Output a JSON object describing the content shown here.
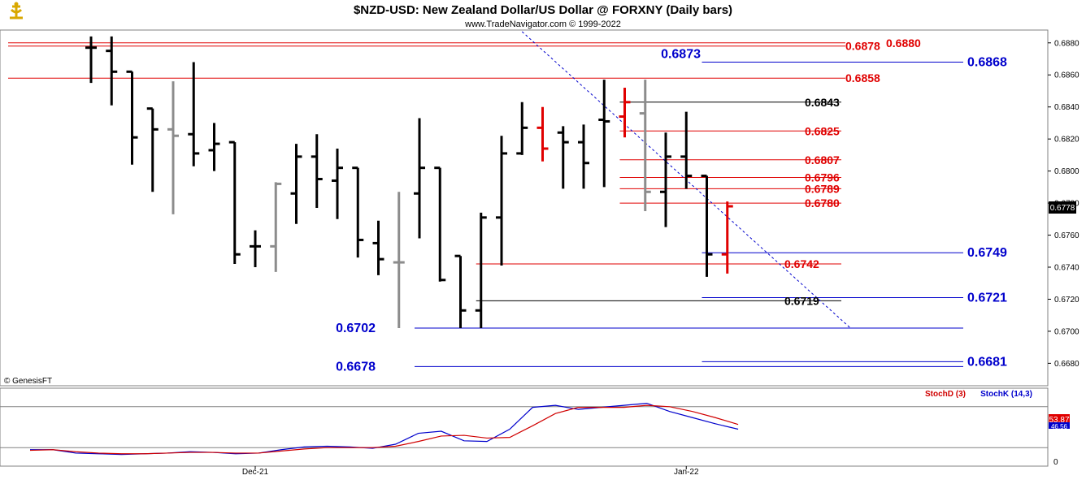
{
  "header": {
    "title": "$NZD-USD:  New Zealand Dollar/US Dollar @ FORXNY  (Daily bars)",
    "subtitle": "www.TradeNavigator.com © 1999-2022",
    "logo_icon": "trade-navigator-logo-icon"
  },
  "watermark": "© GenesisFT",
  "colors": {
    "up_down_bar": "#000000",
    "gray_bar": "#8c8c8c",
    "red_bar": "#e00000",
    "red_level": "#e00000",
    "blue_level": "#0000cc",
    "black_level": "#000000",
    "stoch_k": "#0000cc",
    "stoch_d": "#d00000"
  },
  "chart_data": [
    {
      "type": "ohlc",
      "title": "$NZD-USD:  New Zealand Dollar/US Dollar @ FORXNY  (Daily bars)",
      "ylim": [
        0.6666,
        0.6888
      ],
      "yticks": [
        "0.6680",
        "0.6700",
        "0.6720",
        "0.6740",
        "0.6760",
        "0.6780",
        "0.6800",
        "0.6820",
        "0.6840",
        "0.6860",
        "0.6880"
      ],
      "x_tick_labels": [
        {
          "label": "Dec-21",
          "bar_index": 8
        },
        {
          "label": "Jan-22",
          "bar_index": 29
        }
      ],
      "last_price_label": "0.6778",
      "bars": [
        {
          "o": 0.6877,
          "h": 0.6884,
          "l": 0.6855,
          "c": 0.6877,
          "color": "black"
        },
        {
          "o": 0.6875,
          "h": 0.6884,
          "l": 0.6841,
          "c": 0.6862,
          "color": "black"
        },
        {
          "o": 0.6862,
          "h": 0.6862,
          "l": 0.6804,
          "c": 0.6821,
          "color": "black"
        },
        {
          "o": 0.6839,
          "h": 0.6839,
          "l": 0.6787,
          "c": 0.6826,
          "color": "black"
        },
        {
          "o": 0.6826,
          "h": 0.6856,
          "l": 0.6773,
          "c": 0.6822,
          "color": "gray"
        },
        {
          "o": 0.6823,
          "h": 0.6868,
          "l": 0.6803,
          "c": 0.6811,
          "color": "black"
        },
        {
          "o": 0.6813,
          "h": 0.683,
          "l": 0.68,
          "c": 0.6817,
          "color": "black"
        },
        {
          "o": 0.6818,
          "h": 0.6818,
          "l": 0.6742,
          "c": 0.6748,
          "color": "black"
        },
        {
          "o": 0.6753,
          "h": 0.6763,
          "l": 0.674,
          "c": 0.6753,
          "color": "black"
        },
        {
          "o": 0.6753,
          "h": 0.6793,
          "l": 0.6737,
          "c": 0.6792,
          "color": "gray"
        },
        {
          "o": 0.6786,
          "h": 0.6817,
          "l": 0.6767,
          "c": 0.6809,
          "color": "black"
        },
        {
          "o": 0.6809,
          "h": 0.6823,
          "l": 0.6777,
          "c": 0.6795,
          "color": "black"
        },
        {
          "o": 0.6794,
          "h": 0.6814,
          "l": 0.677,
          "c": 0.6802,
          "color": "black"
        },
        {
          "o": 0.6802,
          "h": 0.6802,
          "l": 0.6746,
          "c": 0.6757,
          "color": "black"
        },
        {
          "o": 0.6755,
          "h": 0.6769,
          "l": 0.6735,
          "c": 0.6745,
          "color": "black"
        },
        {
          "o": 0.6743,
          "h": 0.6787,
          "l": 0.6702,
          "c": 0.6743,
          "color": "gray"
        },
        {
          "o": 0.6786,
          "h": 0.6833,
          "l": 0.6758,
          "c": 0.6802,
          "color": "black"
        },
        {
          "o": 0.6802,
          "h": 0.6802,
          "l": 0.6731,
          "c": 0.6732,
          "color": "black"
        },
        {
          "o": 0.6747,
          "h": 0.6747,
          "l": 0.6702,
          "c": 0.6713,
          "color": "black"
        },
        {
          "o": 0.6713,
          "h": 0.6774,
          "l": 0.6702,
          "c": 0.6771,
          "color": "black"
        },
        {
          "o": 0.6771,
          "h": 0.6822,
          "l": 0.6741,
          "c": 0.6811,
          "color": "black"
        },
        {
          "o": 0.6811,
          "h": 0.6843,
          "l": 0.681,
          "c": 0.6827,
          "color": "black"
        },
        {
          "o": 0.6827,
          "h": 0.684,
          "l": 0.6806,
          "c": 0.6814,
          "color": "red"
        },
        {
          "o": 0.6824,
          "h": 0.6828,
          "l": 0.6789,
          "c": 0.6818,
          "color": "black"
        },
        {
          "o": 0.6818,
          "h": 0.6829,
          "l": 0.6789,
          "c": 0.6805,
          "color": "black"
        },
        {
          "o": 0.6832,
          "h": 0.6857,
          "l": 0.679,
          "c": 0.6831,
          "color": "black"
        },
        {
          "o": 0.6834,
          "h": 0.6852,
          "l": 0.6821,
          "c": 0.6843,
          "color": "red"
        },
        {
          "o": 0.6836,
          "h": 0.6857,
          "l": 0.6775,
          "c": 0.6787,
          "color": "gray"
        },
        {
          "o": 0.6787,
          "h": 0.6824,
          "l": 0.6765,
          "c": 0.6809,
          "color": "black"
        },
        {
          "o": 0.6809,
          "h": 0.6837,
          "l": 0.6789,
          "c": 0.6797,
          "color": "black"
        },
        {
          "o": 0.6797,
          "h": 0.6797,
          "l": 0.6734,
          "c": 0.6748,
          "color": "black"
        },
        {
          "o": 0.6748,
          "h": 0.6781,
          "l": 0.6736,
          "c": 0.6778,
          "color": "red"
        }
      ],
      "levels": [
        {
          "value": 0.688,
          "label": "0.6880",
          "color": "red",
          "label_side": "right",
          "x_from": 0,
          "x_to": "end"
        },
        {
          "value": 0.6878,
          "label": "0.6878",
          "color": "red",
          "label_side": "right",
          "x_from": 0,
          "x_to": "end"
        },
        {
          "value": 0.6873,
          "label": "0.6873",
          "color": "blue",
          "label_side": "left",
          "x_from": null,
          "x_to": null
        },
        {
          "value": 0.6868,
          "label": "0.6868",
          "color": "blue",
          "label_side": "far-right",
          "x_from": 30,
          "x_to": "far"
        },
        {
          "value": 0.6858,
          "label": "0.6858",
          "color": "red",
          "label_side": "right",
          "x_from": 0,
          "x_to": "end"
        },
        {
          "value": 0.6843,
          "label": "0.6843",
          "color": "black",
          "label_side": "right",
          "x_from": 26,
          "x_to": "end"
        },
        {
          "value": 0.6825,
          "label": "0.6825",
          "color": "red",
          "label_side": "right",
          "x_from": 26,
          "x_to": "end"
        },
        {
          "value": 0.6807,
          "label": "0.6807",
          "color": "red",
          "label_side": "right",
          "x_from": 26,
          "x_to": "end"
        },
        {
          "value": 0.6796,
          "label": "0.6796",
          "color": "red",
          "label_side": "right",
          "x_from": 26,
          "x_to": "end"
        },
        {
          "value": 0.6789,
          "label": "0.6789",
          "color": "red",
          "label_side": "right",
          "x_from": 26,
          "x_to": "end"
        },
        {
          "value": 0.678,
          "label": "0.6780",
          "color": "red",
          "label_side": "right",
          "x_from": 26,
          "x_to": "end"
        },
        {
          "value": 0.6749,
          "label": "0.6749",
          "color": "blue",
          "label_side": "far-right",
          "x_from": 30,
          "x_to": "far"
        },
        {
          "value": 0.6742,
          "label": "0.6742",
          "color": "red",
          "label_side": "right",
          "x_from": 19,
          "x_to": "end"
        },
        {
          "value": 0.6721,
          "label": "0.6721",
          "color": "blue",
          "label_side": "far-right",
          "x_from": 30,
          "x_to": "far"
        },
        {
          "value": 0.6719,
          "label": "0.6719",
          "color": "black",
          "label_side": "right",
          "x_from": 19,
          "x_to": "end"
        },
        {
          "value": 0.6702,
          "label": "0.6702",
          "color": "blue",
          "label_side": "left",
          "x_from": 16,
          "x_to": "far"
        },
        {
          "value": 0.6681,
          "label": "0.6681",
          "color": "blue",
          "label_side": "far-right",
          "x_from": 30,
          "x_to": "far"
        },
        {
          "value": 0.6678,
          "label": "0.6678",
          "color": "blue",
          "label_side": "left",
          "x_from": 16,
          "x_to": "far"
        }
      ],
      "trendline": {
        "from": {
          "bar_index": 21,
          "value": 0.6887
        },
        "to": {
          "bar_index": 37,
          "value": 0.6702
        },
        "style": "dotted",
        "color": "blue"
      }
    },
    {
      "type": "line",
      "legend": [
        "StochD (3)",
        "StochK (14,3)"
      ],
      "ylim": [
        0,
        100
      ],
      "yticks": [
        "0"
      ],
      "levels": [
        20,
        80
      ],
      "value_labels": [
        "53.87",
        "46.56"
      ],
      "series": [
        {
          "name": "StochK (14,3)",
          "values": [
            17,
            17,
            12,
            11,
            10,
            11,
            12,
            14,
            13,
            11,
            12,
            17,
            21,
            22,
            21,
            19,
            25,
            41,
            44,
            30,
            29,
            47,
            79,
            82,
            76,
            79,
            82,
            85,
            73,
            64,
            55,
            47
          ]
        },
        {
          "name": "StochD (3)",
          "values": [
            16,
            17,
            14,
            12,
            11,
            11,
            12,
            13,
            13,
            12,
            12,
            15,
            18,
            20,
            20,
            20,
            22,
            29,
            37,
            38,
            34,
            35,
            52,
            70,
            79,
            79,
            79,
            82,
            80,
            73,
            64,
            54
          ]
        }
      ]
    }
  ]
}
